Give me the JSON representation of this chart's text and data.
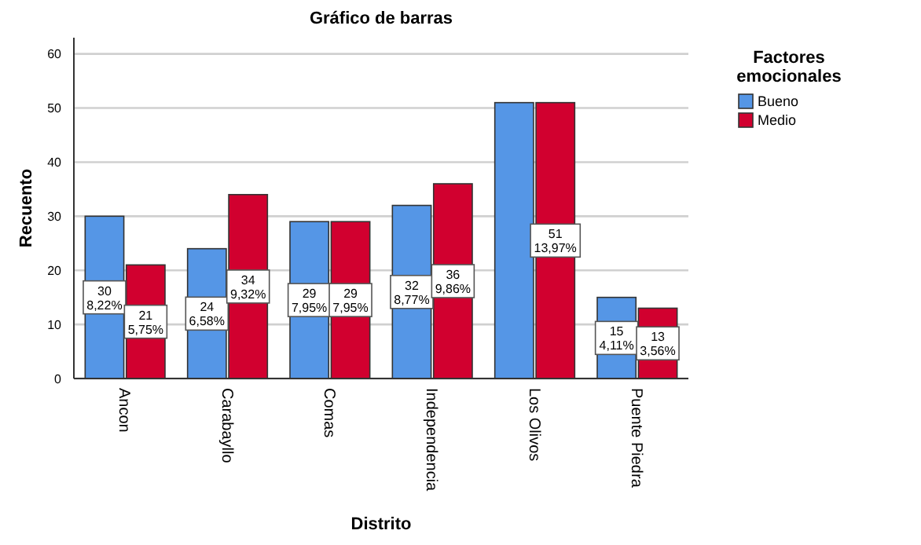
{
  "chart_data": {
    "type": "bar",
    "title": "Gráfico de barras",
    "xlabel": "Distrito",
    "ylabel": "Recuento",
    "legend_title": "Factores emocionales",
    "categories": [
      "Ancon",
      "Carabayllo",
      "Comas",
      "Independencia",
      "Los Olivos",
      "Puente Piedra"
    ],
    "series": [
      {
        "name": "Bueno",
        "color": "#5596e6",
        "values": [
          30,
          24,
          29,
          32,
          51,
          15
        ],
        "value_labels": [
          "30\n8,22%",
          "24\n6,58%",
          "29\n7,95%",
          "32\n8,77%",
          null,
          "15\n4,11%"
        ]
      },
      {
        "name": "Medio",
        "color": "#d1002f",
        "values": [
          21,
          34,
          29,
          36,
          51,
          13
        ],
        "value_labels": [
          "21\n5,75%",
          "34\n9,32%",
          "29\n7,95%",
          "36\n9,86%",
          "51\n13,97%",
          "13\n3,56%"
        ]
      }
    ],
    "ylim": [
      0,
      63
    ],
    "yticks": [
      0,
      10,
      20,
      30,
      40,
      50,
      60
    ],
    "grid": "y",
    "legend": "top right"
  }
}
